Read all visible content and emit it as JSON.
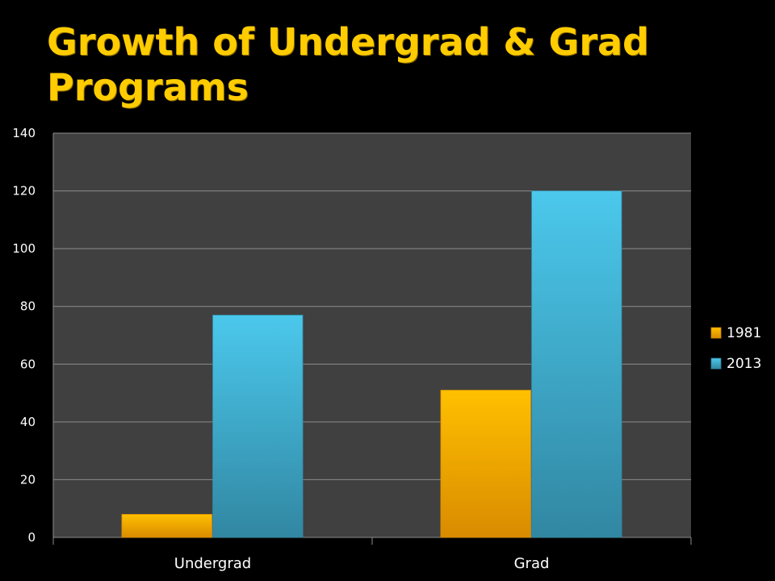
{
  "title": "Growth of Undergrad & Grad Programs",
  "colors": {
    "background": "#000000",
    "plot_area": "#404040",
    "gridline": "#8C8C8C",
    "title": "#FFCC00",
    "text": "#FFFFFF"
  },
  "chart_data": {
    "type": "bar",
    "categories": [
      "Undergrad",
      "Grad"
    ],
    "series": [
      {
        "name": "1981",
        "values": [
          8,
          51
        ],
        "color": "#FFC000",
        "color_dark": "#D98B00"
      },
      {
        "name": "2013",
        "values": [
          77,
          120
        ],
        "color": "#4BC8EC",
        "color_dark": "#3187A2"
      }
    ],
    "ylim": [
      0,
      140
    ],
    "yticks": [
      0,
      20,
      40,
      60,
      80,
      100,
      120,
      140
    ],
    "ytick_labels": [
      "0",
      "20",
      "40",
      "60",
      "80",
      "100",
      "120",
      "140"
    ],
    "grid": true,
    "legend_position": "right",
    "xlabel": "",
    "ylabel": ""
  }
}
